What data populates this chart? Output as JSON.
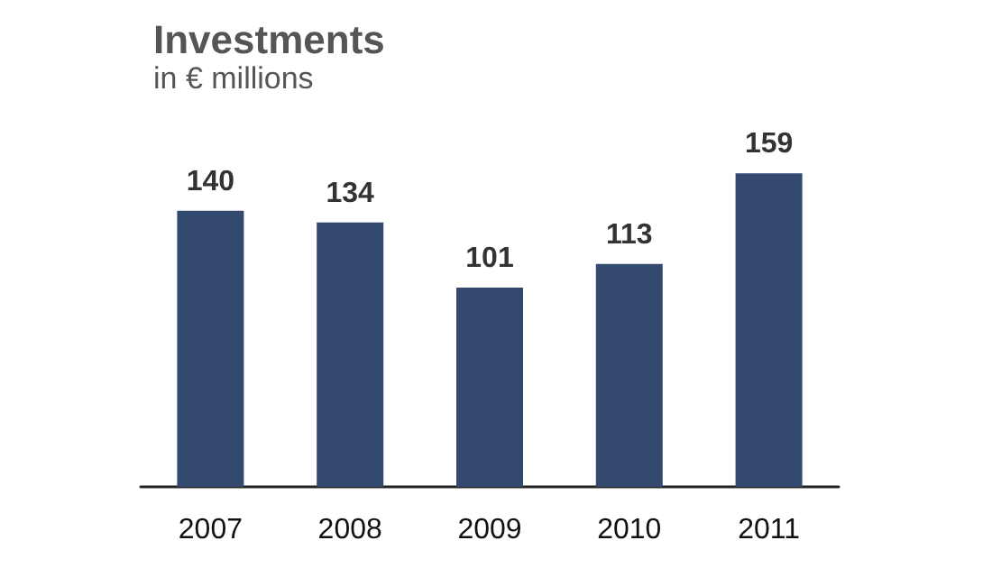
{
  "chart_data": {
    "type": "bar",
    "title": "Investments",
    "subtitle": "in € millions",
    "categories": [
      "2007",
      "2008",
      "2009",
      "2010",
      "2011"
    ],
    "values": [
      140,
      134,
      101,
      113,
      159
    ],
    "color": "#34496e",
    "data_labels": true
  }
}
